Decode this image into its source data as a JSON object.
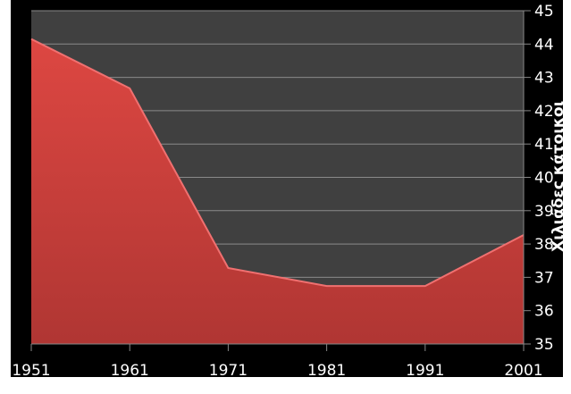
{
  "chart_data": {
    "type": "area",
    "title": "",
    "xlabel": "",
    "ylabel": "Χιλιάδες κάτοικοι",
    "categories": [
      "1951",
      "1961",
      "1971",
      "1981",
      "1991",
      "2001"
    ],
    "values": [
      44.15,
      42.67,
      37.28,
      36.74,
      36.74,
      38.27
    ],
    "ylim": [
      35,
      45
    ],
    "yticks": [
      "35",
      "36",
      "37",
      "38",
      "39",
      "40",
      "41",
      "42",
      "43",
      "44",
      "45"
    ],
    "y_axis_position": "right",
    "grid": true,
    "legend": "none",
    "colors": {
      "fill": "#d9443f",
      "plot_bg": "#404040",
      "background": "#000000",
      "grid": "#8a8a8a"
    }
  }
}
